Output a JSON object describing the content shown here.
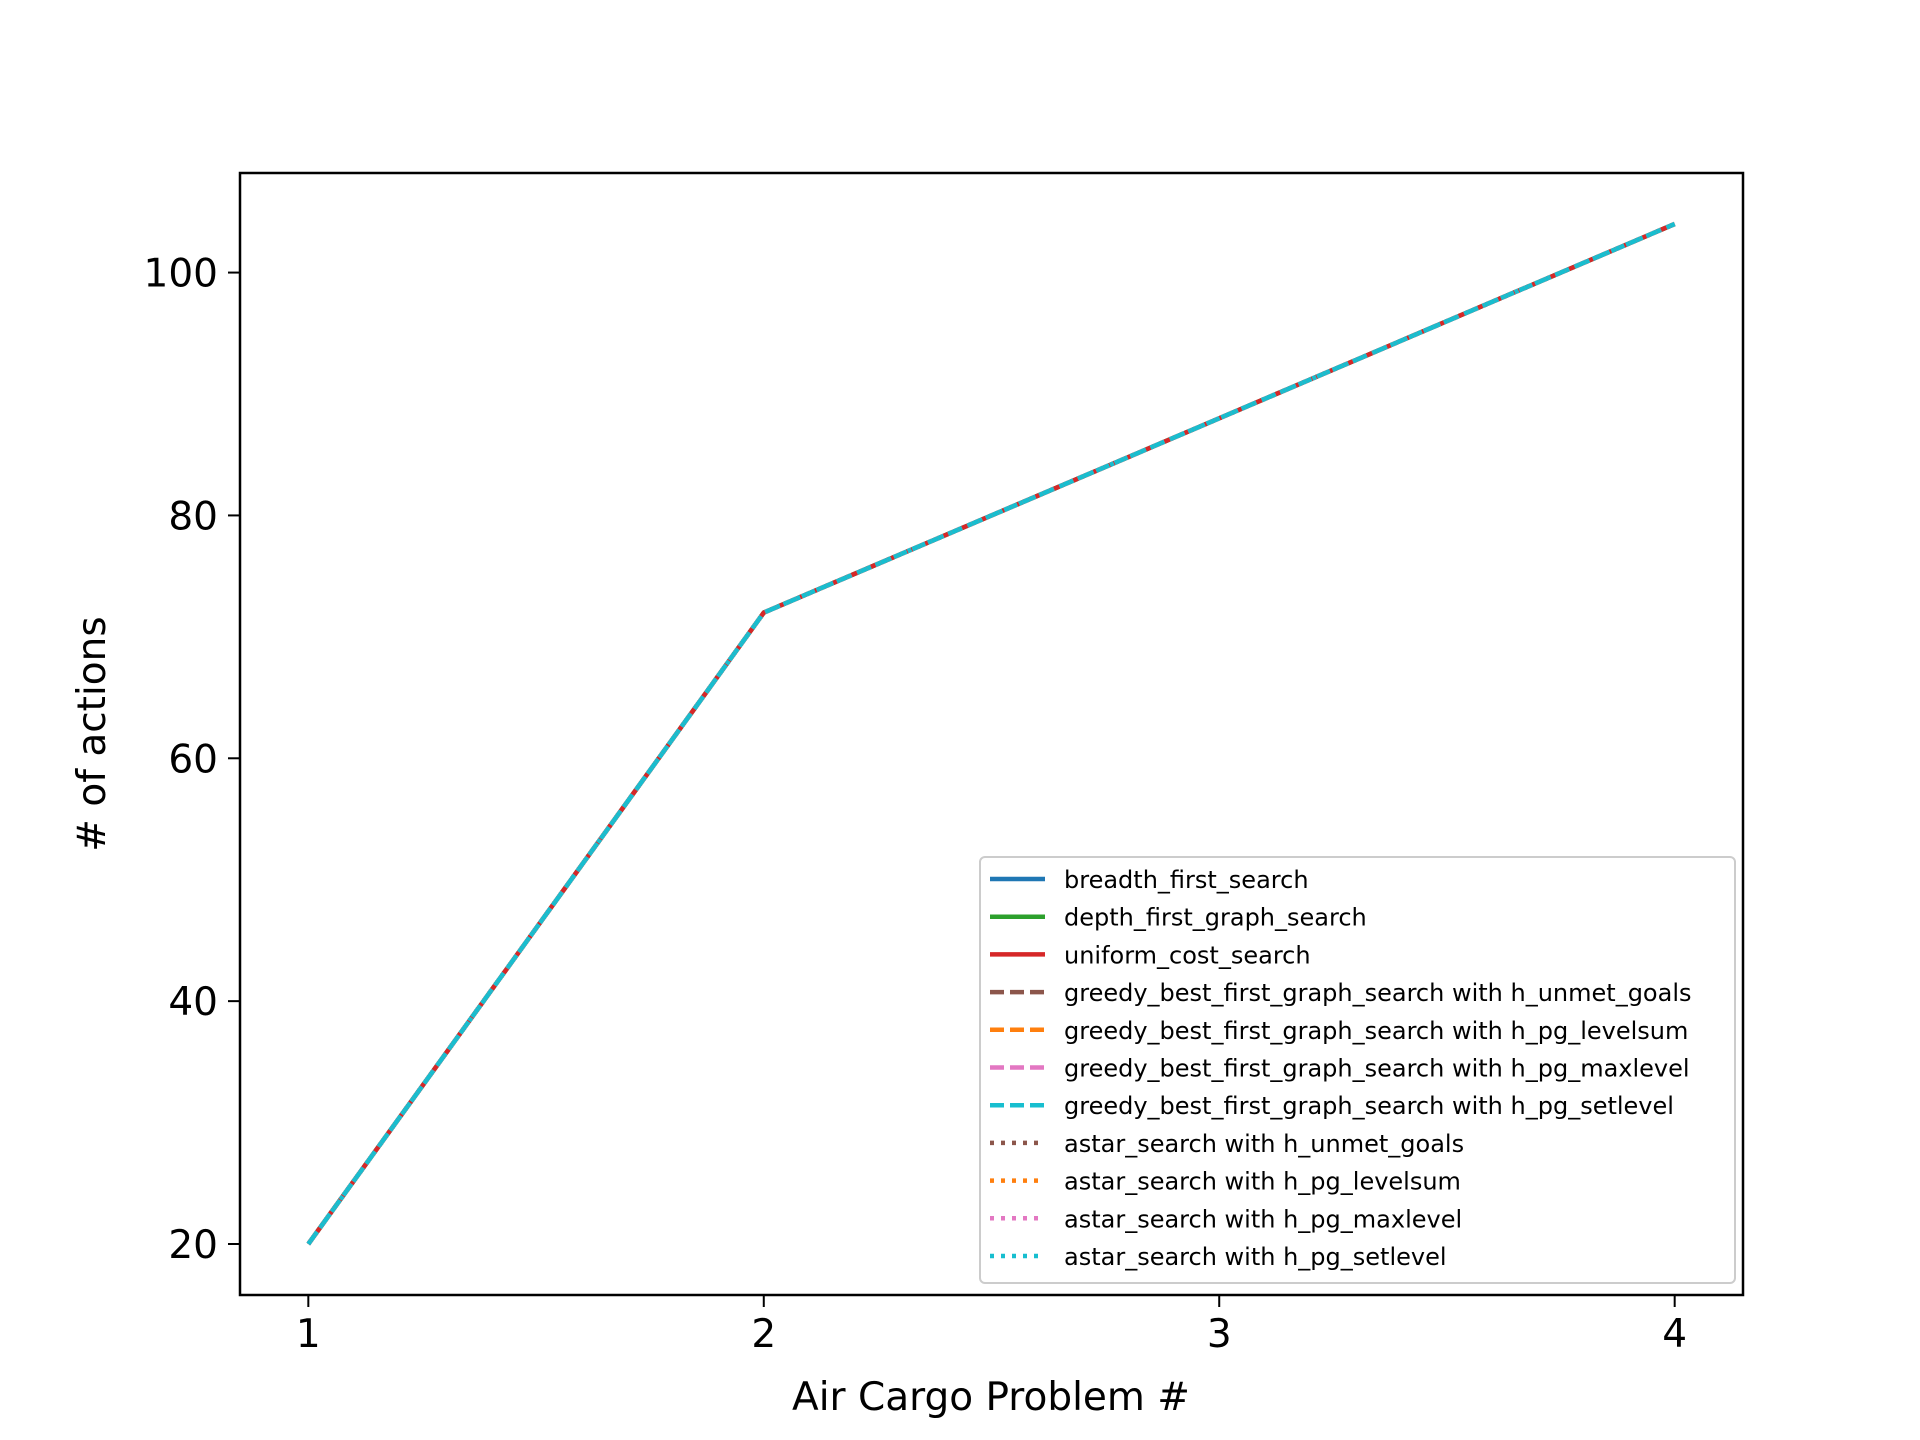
{
  "chart_data": {
    "type": "line",
    "title": "",
    "xlabel": "Air Cargo Problem #",
    "ylabel": "# of actions",
    "x": [
      1,
      2,
      3,
      4
    ],
    "xlim": [
      0.85,
      4.15
    ],
    "ylim": [
      15.8,
      108.2
    ],
    "xticks": [
      1,
      2,
      3,
      4
    ],
    "yticks": [
      20,
      40,
      60,
      80,
      100
    ],
    "grid": false,
    "legend_position": "lower-right",
    "series": [
      {
        "name": "breadth_first_search",
        "values": [
          20,
          72,
          88,
          104
        ],
        "color": "#1f77b4",
        "style": "solid"
      },
      {
        "name": "depth_first_graph_search",
        "values": [
          20,
          72,
          88,
          104
        ],
        "color": "#2ca02c",
        "style": "solid"
      },
      {
        "name": "uniform_cost_search",
        "values": [
          20,
          72,
          88,
          104
        ],
        "color": "#d62728",
        "style": "solid"
      },
      {
        "name": "greedy_best_first_graph_search with h_unmet_goals",
        "values": [
          20,
          72,
          88,
          104
        ],
        "color": "#8c564b",
        "style": "dashed"
      },
      {
        "name": "greedy_best_first_graph_search with h_pg_levelsum",
        "values": [
          20,
          72,
          88,
          104
        ],
        "color": "#ff7f0e",
        "style": "dashed"
      },
      {
        "name": "greedy_best_first_graph_search with h_pg_maxlevel",
        "values": [
          20,
          72,
          88,
          104
        ],
        "color": "#e377c2",
        "style": "dashed"
      },
      {
        "name": "greedy_best_first_graph_search with h_pg_setlevel",
        "values": [
          20,
          72,
          88,
          104
        ],
        "color": "#17becf",
        "style": "dashed"
      },
      {
        "name": "astar_search with h_unmet_goals",
        "values": [
          20,
          72,
          88,
          104
        ],
        "color": "#8c564b",
        "style": "dotted"
      },
      {
        "name": "astar_search with h_pg_levelsum",
        "values": [
          20,
          72,
          88,
          104
        ],
        "color": "#ff7f0e",
        "style": "dotted"
      },
      {
        "name": "astar_search with h_pg_maxlevel",
        "values": [
          20,
          72,
          88,
          104
        ],
        "color": "#e377c2",
        "style": "dotted"
      },
      {
        "name": "astar_search with h_pg_setlevel",
        "values": [
          20,
          72,
          88,
          104
        ],
        "color": "#17becf",
        "style": "dotted"
      }
    ]
  }
}
